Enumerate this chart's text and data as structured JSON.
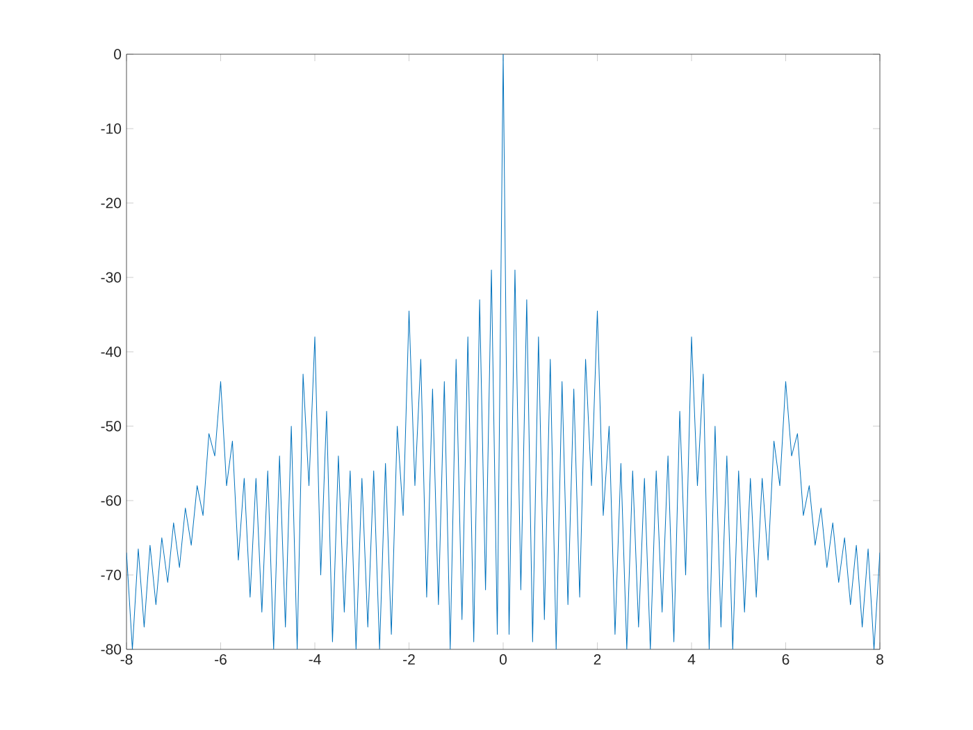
{
  "chart_data": {
    "type": "line",
    "xlim": [
      -8,
      8
    ],
    "ylim": [
      -80,
      0
    ],
    "xticks": [
      -8,
      -6,
      -4,
      -2,
      0,
      2,
      4,
      6,
      8
    ],
    "yticks": [
      -80,
      -70,
      -60,
      -50,
      -40,
      -30,
      -20,
      -10,
      0
    ],
    "grid": false,
    "marker": "none",
    "line_style": "solid",
    "series": [
      {
        "color": "#0072bd",
        "x": [
          -8.0,
          -7.875,
          -7.75,
          -7.625,
          -7.5,
          -7.375,
          -7.25,
          -7.125,
          -7.0,
          -6.875,
          -6.75,
          -6.625,
          -6.5,
          -6.375,
          -6.25,
          -6.125,
          -6.0,
          -5.875,
          -5.75,
          -5.625,
          -5.5,
          -5.375,
          -5.25,
          -5.125,
          -5.0,
          -4.875,
          -4.75,
          -4.625,
          -4.5,
          -4.375,
          -4.25,
          -4.125,
          -4.0,
          -3.875,
          -3.75,
          -3.625,
          -3.5,
          -3.375,
          -3.25,
          -3.125,
          -3.0,
          -2.875,
          -2.75,
          -2.625,
          -2.5,
          -2.375,
          -2.25,
          -2.125,
          -2.0,
          -1.875,
          -1.75,
          -1.625,
          -1.5,
          -1.375,
          -1.25,
          -1.125,
          -1.0,
          -0.875,
          -0.75,
          -0.625,
          -0.5,
          -0.375,
          -0.25,
          -0.125,
          0.0,
          0.125,
          0.25,
          0.375,
          0.5,
          0.625,
          0.75,
          0.875,
          1.0,
          1.125,
          1.25,
          1.375,
          1.5,
          1.625,
          1.75,
          1.875,
          2.0,
          2.125,
          2.25,
          2.375,
          2.5,
          2.625,
          2.75,
          2.875,
          3.0,
          3.125,
          3.25,
          3.375,
          3.5,
          3.625,
          3.75,
          3.875,
          4.0,
          4.125,
          4.25,
          4.375,
          4.5,
          4.625,
          4.75,
          4.875,
          5.0,
          5.125,
          5.25,
          5.375,
          5.5,
          5.625,
          5.75,
          5.875,
          6.0,
          6.125,
          6.25,
          6.375,
          6.5,
          6.625,
          6.75,
          6.875,
          7.0,
          7.125,
          7.25,
          7.375,
          7.5,
          7.625,
          7.75,
          7.875,
          8.0
        ],
        "values": [
          -67,
          -80,
          -66.5,
          -77,
          -66,
          -74,
          -65,
          -71,
          -63,
          -69,
          -61,
          -66,
          -58,
          -62,
          -51,
          -54,
          -44,
          -58,
          -52,
          -68,
          -57,
          -73,
          -57,
          -75,
          -56,
          -80,
          -54,
          -77,
          -50,
          -80,
          -43,
          -58,
          -38,
          -70,
          -48,
          -79,
          -54,
          -75,
          -56,
          -80,
          -57,
          -77,
          -56,
          -80,
          -55,
          -78,
          -50,
          -62,
          -34.5,
          -58,
          -41,
          -73,
          -45,
          -74,
          -44,
          -80,
          -41,
          -76,
          -38,
          -79,
          -33,
          -72,
          -29,
          -78,
          0,
          -78,
          -29,
          -72,
          -33,
          -79,
          -38,
          -76,
          -41,
          -80,
          -44,
          -74,
          -45,
          -73,
          -41,
          -58,
          -34.5,
          -62,
          -50,
          -78,
          -55,
          -80,
          -56,
          -77,
          -57,
          -80,
          -56,
          -75,
          -54,
          -79,
          -48,
          -70,
          -38,
          -58,
          -43,
          -80,
          -50,
          -77,
          -54,
          -80,
          -56,
          -75,
          -57,
          -73,
          -57,
          -68,
          -52,
          -58,
          -44,
          -54,
          -51,
          -62,
          -58,
          -66,
          -61,
          -69,
          -63,
          -71,
          -65,
          -74,
          -66,
          -77,
          -66.5,
          -80,
          -67
        ]
      }
    ]
  }
}
